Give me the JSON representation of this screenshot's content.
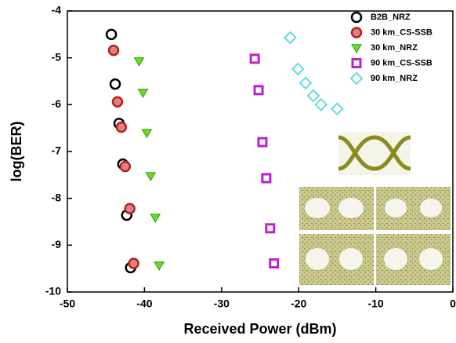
{
  "chart_data": {
    "type": "scatter",
    "xlabel": "Received Power (dBm)",
    "ylabel": "log(BER)",
    "xlim": [
      -50,
      0
    ],
    "ylim": [
      -10,
      -4
    ],
    "xticks": [
      -50,
      -40,
      -30,
      -20,
      -10,
      0
    ],
    "yticks": [
      -10,
      -9,
      -8,
      -7,
      -6,
      -5,
      -4
    ],
    "legend": "upper right",
    "series": [
      {
        "name": "B2B_NRZ",
        "color": "#000000",
        "marker": "circle",
        "x": [
          -44.3,
          -43.8,
          -43.3,
          -42.8,
          -42.3,
          -41.8
        ],
        "values": [
          -4.5,
          -5.56,
          -6.4,
          -7.27,
          -8.36,
          -9.48
        ]
      },
      {
        "name": "30 km_CS-SSB",
        "color": "#b22222",
        "marker": "circle-filled",
        "x": [
          -44.0,
          -43.5,
          -43.0,
          -42.5,
          -41.9,
          -41.4
        ],
        "values": [
          -4.84,
          -5.94,
          -6.48,
          -7.32,
          -8.22,
          -9.39
        ]
      },
      {
        "name": "30 km_NRZ",
        "color": "#66dd22",
        "marker": "triangle-down",
        "x": [
          -40.7,
          -40.2,
          -39.7,
          -39.2,
          -38.6,
          -38.1
        ],
        "values": [
          -5.07,
          -5.74,
          -6.6,
          -7.52,
          -8.41,
          -9.43
        ]
      },
      {
        "name": "90 km_CS-SSB",
        "color": "#bb22cc",
        "marker": "square",
        "x": [
          -25.7,
          -25.2,
          -24.7,
          -24.2,
          -23.7,
          -23.2
        ],
        "values": [
          -5.02,
          -5.69,
          -6.8,
          -7.57,
          -8.64,
          -9.39
        ]
      },
      {
        "name": "90 km_NRZ",
        "color": "#66dddd",
        "marker": "diamond",
        "x": [
          -21.1,
          -20.1,
          -19.1,
          -18.1,
          -17.1,
          -15.0
        ],
        "values": [
          -4.57,
          -5.24,
          -5.54,
          -5.81,
          -6.0,
          -6.09
        ]
      }
    ]
  }
}
